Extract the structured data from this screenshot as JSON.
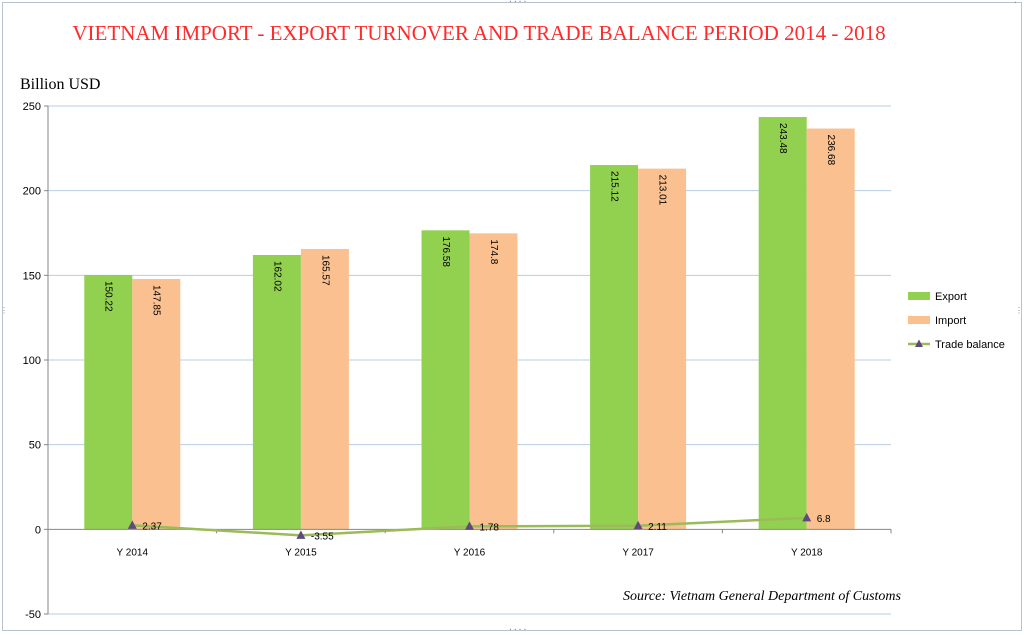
{
  "chart_data": {
    "type": "bar",
    "title": "VIETNAM IMPORT - EXPORT TURNOVER AND TRADE BALANCE PERIOD 2014 - 2018",
    "ylabel": "Billion USD",
    "xlabel": "",
    "ylim": [
      -50,
      250
    ],
    "yticks": [
      -50,
      0,
      50,
      100,
      150,
      200,
      250
    ],
    "grid": true,
    "legend_position": "right",
    "categories": [
      "Y 2014",
      "Y 2015",
      "Y 2016",
      "Y 2017",
      "Y 2018"
    ],
    "series": [
      {
        "name": "Export",
        "kind": "bar",
        "values": [
          150.22,
          162.02,
          176.58,
          215.12,
          243.48
        ],
        "labels": [
          "150.22",
          "162.02",
          "176.58",
          "215.12",
          "243.48"
        ],
        "color": "#92d050"
      },
      {
        "name": "Import",
        "kind": "bar",
        "values": [
          147.85,
          165.57,
          174.8,
          213.01,
          236.68
        ],
        "labels": [
          "147.85",
          "165.57",
          "174.8",
          "213.01",
          "236.68"
        ],
        "color": "#fac090"
      },
      {
        "name": "Trade balance",
        "kind": "line",
        "values": [
          2.37,
          -3.55,
          1.78,
          2.11,
          6.8
        ],
        "labels": [
          "2.37",
          "-3.55",
          "1.78",
          "2.11",
          "6.8"
        ],
        "color": "#9bbb59",
        "marker_color": "#604a7b"
      }
    ],
    "source": "Source: Vietnam General Department of Customs"
  },
  "colors": {
    "gridline": "#b9cde5",
    "axis": "#868686",
    "border": "#b7c2cf",
    "title": "#ff2a2a"
  }
}
